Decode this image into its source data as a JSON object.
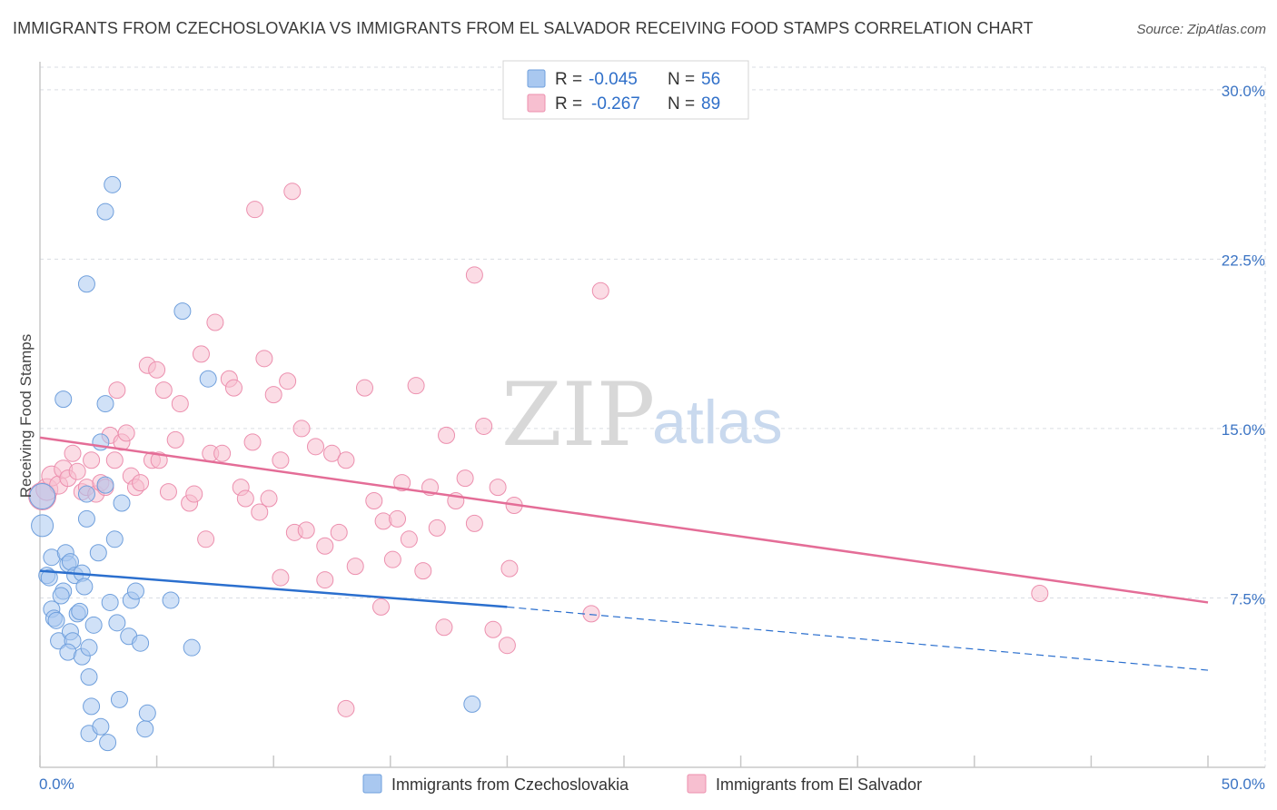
{
  "title": "IMMIGRANTS FROM CZECHOSLOVAKIA VS IMMIGRANTS FROM EL SALVADOR RECEIVING FOOD STAMPS CORRELATION CHART",
  "source": "Source: ZipAtlas.com",
  "watermark": {
    "zip": "ZIP",
    "atlas": "atlas"
  },
  "legend": {
    "rows": [
      {
        "r_label": "R =",
        "r_value": "-0.045",
        "n_label": "N =",
        "n_value": "56"
      },
      {
        "r_label": "R =",
        "r_value": "-0.267",
        "n_label": "N =",
        "n_value": "89"
      }
    ]
  },
  "colors": {
    "blue_fill": "#a9c8f0",
    "blue_stroke": "#6f9fdc",
    "blue_line": "#2b6fce",
    "pink_fill": "#f7bfd0",
    "pink_stroke": "#ec8fae",
    "pink_line": "#e46d97",
    "grid": "#d9dde3",
    "axis": "#c8c8c8"
  },
  "chart_data": {
    "type": "scatter",
    "title": "IMMIGRANTS FROM CZECHOSLOVAKIA VS IMMIGRANTS FROM EL SALVADOR RECEIVING FOOD STAMPS CORRELATION CHART",
    "xlabel": "",
    "ylabel": "Receiving Food Stamps",
    "xlim": [
      0,
      50
    ],
    "ylim": [
      0,
      31
    ],
    "x_tick_labels": [
      "0.0%",
      "50.0%"
    ],
    "y_ticks": [
      7.5,
      15.0,
      22.5,
      30.0
    ],
    "y_tick_labels": [
      "7.5%",
      "15.0%",
      "22.5%",
      "30.0%"
    ],
    "grid": true,
    "legend_position": "top-center",
    "series": [
      {
        "name": "Immigrants from Czechoslovakia",
        "r": -0.045,
        "n": 56,
        "trend": {
          "x0": 0,
          "y0": 8.7,
          "x1": 20,
          "y1": 7.1,
          "dash_x1": 50,
          "dash_y1": 4.3
        },
        "points": [
          [
            0.1,
            12.0,
            14
          ],
          [
            0.1,
            10.7,
            12
          ],
          [
            0.3,
            8.5,
            9
          ],
          [
            0.4,
            8.4,
            9
          ],
          [
            0.5,
            7.0,
            9
          ],
          [
            0.6,
            6.6,
            9
          ],
          [
            0.7,
            6.5,
            9
          ],
          [
            0.5,
            9.3,
            9
          ],
          [
            0.8,
            5.6,
            9
          ],
          [
            1.0,
            7.8,
            9
          ],
          [
            0.9,
            7.6,
            9
          ],
          [
            1.1,
            9.5,
            9
          ],
          [
            1.2,
            9.0,
            9
          ],
          [
            1.3,
            9.1,
            9
          ],
          [
            1.0,
            16.3,
            9
          ],
          [
            1.5,
            8.5,
            9
          ],
          [
            1.3,
            6.0,
            9
          ],
          [
            1.4,
            5.6,
            9
          ],
          [
            1.2,
            5.1,
            9
          ],
          [
            1.6,
            6.8,
            9
          ],
          [
            1.7,
            6.9,
            9
          ],
          [
            1.8,
            8.6,
            9
          ],
          [
            1.9,
            8.0,
            9
          ],
          [
            2.0,
            11.0,
            9
          ],
          [
            2.1,
            4.0,
            9
          ],
          [
            1.8,
            4.9,
            9
          ],
          [
            2.2,
            2.7,
            9
          ],
          [
            2.5,
            9.5,
            9
          ],
          [
            2.6,
            14.4,
            9
          ],
          [
            2.8,
            16.1,
            9
          ],
          [
            2.0,
            12.1,
            9
          ],
          [
            2.8,
            12.5,
            9
          ],
          [
            3.0,
            7.3,
            9
          ],
          [
            2.1,
            5.3,
            9
          ],
          [
            2.3,
            6.3,
            9
          ],
          [
            3.2,
            10.1,
            9
          ],
          [
            3.3,
            6.4,
            9
          ],
          [
            3.5,
            11.7,
            9
          ],
          [
            3.4,
            3.0,
            9
          ],
          [
            3.8,
            5.8,
            9
          ],
          [
            3.9,
            7.4,
            9
          ],
          [
            4.1,
            7.8,
            9
          ],
          [
            4.3,
            5.5,
            9
          ],
          [
            2.1,
            1.5,
            9
          ],
          [
            2.6,
            1.8,
            9
          ],
          [
            2.9,
            1.1,
            9
          ],
          [
            4.5,
            1.7,
            9
          ],
          [
            4.6,
            2.4,
            9
          ],
          [
            5.6,
            7.4,
            9
          ],
          [
            3.1,
            25.8,
            9
          ],
          [
            2.8,
            24.6,
            9
          ],
          [
            2.0,
            21.4,
            9
          ],
          [
            6.1,
            20.2,
            9
          ],
          [
            7.2,
            17.2,
            9
          ],
          [
            6.5,
            5.3,
            9
          ],
          [
            18.5,
            2.8,
            9
          ]
        ]
      },
      {
        "name": "Immigrants from El Salvador",
        "r": -0.267,
        "n": 89,
        "trend": {
          "x0": 0,
          "y0": 14.6,
          "x1": 50,
          "y1": 7.3
        },
        "points": [
          [
            0.1,
            12.0,
            15
          ],
          [
            0.3,
            12.3,
            12
          ],
          [
            0.5,
            12.9,
            11
          ],
          [
            0.8,
            12.5,
            10
          ],
          [
            1.0,
            13.2,
            10
          ],
          [
            1.2,
            12.8,
            9
          ],
          [
            1.4,
            13.9,
            9
          ],
          [
            1.6,
            13.1,
            9
          ],
          [
            1.8,
            12.2,
            9
          ],
          [
            2.0,
            12.4,
            9
          ],
          [
            2.2,
            13.6,
            9
          ],
          [
            2.4,
            12.1,
            9
          ],
          [
            2.6,
            12.6,
            9
          ],
          [
            2.8,
            12.4,
            9
          ],
          [
            3.0,
            14.7,
            9
          ],
          [
            3.2,
            13.6,
            9
          ],
          [
            3.5,
            14.4,
            9
          ],
          [
            3.7,
            14.8,
            9
          ],
          [
            3.9,
            12.9,
            9
          ],
          [
            4.1,
            12.4,
            9
          ],
          [
            4.3,
            12.6,
            9
          ],
          [
            3.3,
            16.7,
            9
          ],
          [
            4.6,
            17.8,
            9
          ],
          [
            5.0,
            17.6,
            9
          ],
          [
            4.8,
            13.6,
            9
          ],
          [
            5.1,
            13.6,
            9
          ],
          [
            5.3,
            16.7,
            9
          ],
          [
            5.5,
            12.2,
            9
          ],
          [
            5.8,
            14.5,
            9
          ],
          [
            6.0,
            16.1,
            9
          ],
          [
            6.4,
            11.7,
            9
          ],
          [
            6.6,
            12.1,
            9
          ],
          [
            6.9,
            18.3,
            9
          ],
          [
            7.1,
            10.1,
            9
          ],
          [
            7.3,
            13.9,
            9
          ],
          [
            7.5,
            19.7,
            9
          ],
          [
            7.8,
            13.9,
            9
          ],
          [
            8.1,
            17.2,
            9
          ],
          [
            8.3,
            16.8,
            9
          ],
          [
            8.6,
            12.4,
            9
          ],
          [
            8.8,
            11.9,
            9
          ],
          [
            9.1,
            14.4,
            9
          ],
          [
            9.4,
            11.3,
            9
          ],
          [
            9.6,
            18.1,
            9
          ],
          [
            9.8,
            11.9,
            9
          ],
          [
            10.0,
            16.5,
            9
          ],
          [
            10.3,
            13.6,
            9
          ],
          [
            10.6,
            17.1,
            9
          ],
          [
            10.9,
            10.4,
            9
          ],
          [
            11.2,
            15.0,
            9
          ],
          [
            11.4,
            10.5,
            9
          ],
          [
            11.8,
            14.2,
            9
          ],
          [
            12.2,
            9.8,
            9
          ],
          [
            12.5,
            13.9,
            9
          ],
          [
            12.8,
            10.4,
            9
          ],
          [
            13.1,
            13.6,
            9
          ],
          [
            13.5,
            8.9,
            9
          ],
          [
            13.9,
            16.8,
            9
          ],
          [
            14.3,
            11.8,
            9
          ],
          [
            14.7,
            10.9,
            9
          ],
          [
            15.1,
            9.2,
            9
          ],
          [
            15.5,
            12.6,
            9
          ],
          [
            15.8,
            10.1,
            9
          ],
          [
            16.1,
            16.9,
            9
          ],
          [
            16.4,
            8.7,
            9
          ],
          [
            16.7,
            12.4,
            9
          ],
          [
            17.0,
            10.6,
            9
          ],
          [
            17.4,
            14.7,
            9
          ],
          [
            17.8,
            11.8,
            9
          ],
          [
            18.2,
            12.8,
            9
          ],
          [
            18.6,
            10.8,
            9
          ],
          [
            19.0,
            15.1,
            9
          ],
          [
            19.6,
            12.4,
            9
          ],
          [
            20.3,
            11.6,
            9
          ],
          [
            20.1,
            8.8,
            9
          ],
          [
            9.2,
            24.7,
            9
          ],
          [
            10.8,
            25.5,
            9
          ],
          [
            18.6,
            21.8,
            9
          ],
          [
            24.0,
            21.1,
            9
          ],
          [
            10.3,
            8.4,
            9
          ],
          [
            12.2,
            8.3,
            9
          ],
          [
            13.1,
            2.6,
            9
          ],
          [
            14.6,
            7.1,
            9
          ],
          [
            17.3,
            6.2,
            9
          ],
          [
            19.4,
            6.1,
            9
          ],
          [
            20.0,
            5.4,
            9
          ],
          [
            23.6,
            6.8,
            9
          ],
          [
            42.8,
            7.7,
            9
          ],
          [
            15.3,
            11.0,
            9
          ]
        ]
      }
    ]
  },
  "bottom_legend": [
    {
      "label": "Immigrants from Czechoslovakia"
    },
    {
      "label": "Immigrants from El Salvador"
    }
  ]
}
